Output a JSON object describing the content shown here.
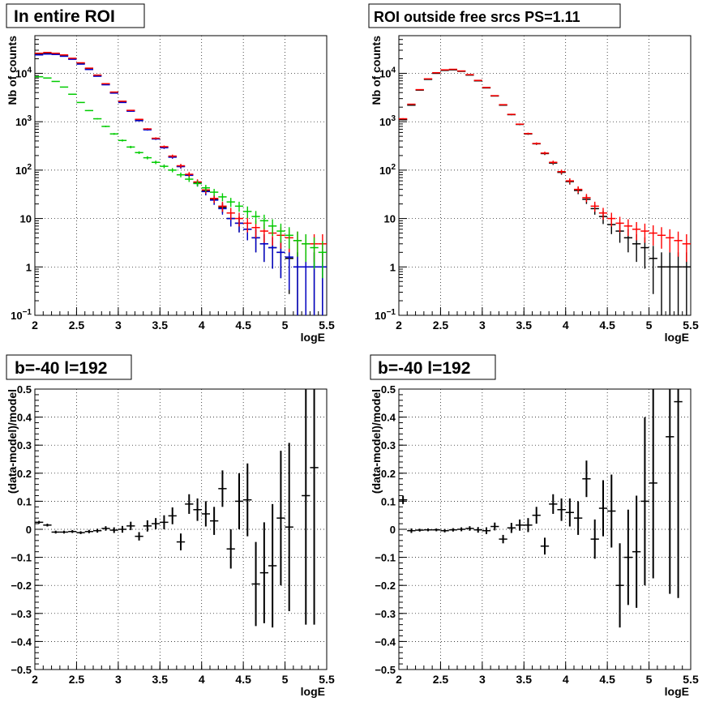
{
  "chart_data": [
    {
      "type": "scatter",
      "title": "In entire ROI",
      "xlabel": "logE",
      "ylabel": "Nb of counts",
      "xlim": [
        2,
        5.5
      ],
      "ylim": [
        0.1,
        60000
      ],
      "yscale": "log",
      "grid": true,
      "x_ticks": [
        "2",
        "2.5",
        "3",
        "3.5",
        "4",
        "4.5",
        "5",
        "5.5"
      ],
      "y_ticks": [
        {
          "v": 0.1,
          "base": "10",
          "exp": "−1"
        },
        {
          "v": 1,
          "label": "1"
        },
        {
          "v": 10,
          "label": "10"
        },
        {
          "v": 100,
          "base": "10",
          "exp": "2"
        },
        {
          "v": 1000,
          "base": "10",
          "exp": "3"
        },
        {
          "v": 10000,
          "base": "10",
          "exp": "4"
        }
      ],
      "bin_width": 0.1,
      "series": [
        {
          "color": "#000000",
          "x": [
            2.05,
            2.15,
            2.25,
            2.35,
            2.45,
            2.55,
            2.65,
            2.75,
            2.85,
            2.95,
            3.05,
            3.15,
            3.25,
            3.35,
            3.45,
            3.55,
            3.65,
            3.75,
            3.85,
            3.95,
            4.05,
            4.15,
            4.25,
            4.35,
            4.45,
            4.55,
            4.65,
            4.75,
            4.85,
            4.95,
            5.05,
            5.15,
            5.25,
            5.35,
            5.45
          ],
          "y": [
            25000,
            26000,
            25000,
            23000,
            20000,
            16000,
            12500,
            9000,
            6000,
            4000,
            2600,
            1700,
            1100,
            700,
            450,
            300,
            190,
            120,
            80,
            55,
            37,
            25,
            17,
            10,
            8,
            6,
            4,
            3,
            2.5,
            2,
            1.5,
            1,
            1,
            1,
            1
          ],
          "err": [
            0,
            0,
            0,
            0,
            0,
            0,
            0,
            0,
            0,
            0,
            0,
            0,
            0,
            0,
            0,
            0,
            0,
            0,
            0,
            0,
            0,
            0,
            0,
            0,
            0,
            0,
            0,
            0,
            0,
            0,
            0,
            0,
            0,
            0,
            0
          ]
        },
        {
          "color": "#0000cc",
          "x": [
            2.05,
            2.15,
            2.25,
            2.35,
            2.45,
            2.55,
            2.65,
            2.75,
            2.85,
            2.95,
            3.05,
            3.15,
            3.25,
            3.35,
            3.45,
            3.55,
            3.65,
            3.75,
            3.85,
            3.95,
            4.05,
            4.15,
            4.25,
            4.35,
            4.45,
            4.55,
            4.65,
            4.75,
            4.85,
            4.95,
            5.05,
            5.15,
            5.25,
            5.35,
            5.45
          ],
          "y": [
            24000,
            25000,
            24500,
            22500,
            19500,
            15500,
            12000,
            8700,
            5800,
            3900,
            2500,
            1650,
            1050,
            680,
            440,
            290,
            185,
            118,
            78,
            53,
            36,
            24,
            16,
            10,
            8,
            6,
            4,
            3,
            2.5,
            2,
            1.6,
            1,
            1,
            1,
            1
          ],
          "err": [
            0,
            0,
            0,
            0,
            0,
            0,
            0,
            0,
            0,
            0,
            0,
            0,
            0,
            0,
            0,
            0,
            0,
            0,
            0,
            0,
            0,
            0,
            0,
            0,
            0,
            0,
            0,
            0,
            0,
            0,
            0,
            0,
            0,
            0,
            0
          ]
        },
        {
          "color": "#ff0000",
          "x": [
            2.05,
            2.15,
            2.25,
            2.35,
            2.45,
            2.55,
            2.65,
            2.75,
            2.85,
            2.95,
            3.05,
            3.15,
            3.25,
            3.35,
            3.45,
            3.55,
            3.65,
            3.75,
            3.85,
            3.95,
            4.05,
            4.15,
            4.25,
            4.35,
            4.45,
            4.55,
            4.65,
            4.75,
            4.85,
            4.95,
            5.05,
            5.15,
            5.25,
            5.35,
            5.45
          ],
          "y": [
            26000,
            27000,
            26000,
            24000,
            20500,
            16500,
            12800,
            9200,
            6100,
            4100,
            2650,
            1720,
            1120,
            710,
            455,
            305,
            195,
            123,
            82,
            57,
            39,
            26,
            18,
            13,
            10,
            8,
            6.5,
            5.5,
            5,
            4.5,
            4,
            3.5,
            3,
            3,
            3
          ],
          "err": [
            0,
            0,
            0,
            0,
            0,
            0,
            0,
            0,
            0,
            0,
            0,
            0,
            0,
            0,
            0,
            0,
            0,
            0,
            0,
            0,
            0,
            0,
            0,
            0,
            0,
            0,
            0,
            0,
            0,
            0,
            0,
            0,
            0,
            0,
            0
          ]
        },
        {
          "color": "#00cc00",
          "x": [
            2.05,
            2.15,
            2.25,
            2.35,
            2.45,
            2.55,
            2.65,
            2.75,
            2.85,
            2.95,
            3.05,
            3.15,
            3.25,
            3.35,
            3.45,
            3.55,
            3.65,
            3.75,
            3.85,
            3.95,
            4.05,
            4.15,
            4.25,
            4.35,
            4.45,
            4.55,
            4.65,
            4.75,
            4.85,
            4.95,
            5.05,
            5.15,
            5.25,
            5.35,
            5.45
          ],
          "y": [
            8500,
            8000,
            6800,
            5200,
            3700,
            2500,
            1700,
            1150,
            800,
            560,
            410,
            300,
            230,
            180,
            145,
            120,
            100,
            80,
            65,
            53,
            43,
            35,
            28,
            22,
            18,
            14,
            11,
            9,
            7,
            5.5,
            4.5,
            3.5,
            3,
            2.5,
            2
          ],
          "err": [
            0,
            0,
            0,
            0,
            0,
            0,
            0,
            0,
            0,
            0,
            0,
            0,
            0,
            0,
            0,
            0,
            0,
            0,
            0,
            0,
            0,
            0,
            0,
            0,
            0,
            0,
            0,
            0,
            0,
            0,
            0,
            0,
            0,
            0,
            0
          ]
        }
      ]
    },
    {
      "type": "scatter",
      "title": "ROI outside free srcs PS=1.11",
      "xlabel": "logE",
      "ylabel": "Nb of counts",
      "xlim": [
        2,
        5.5
      ],
      "ylim": [
        0.1,
        60000
      ],
      "yscale": "log",
      "grid": true,
      "x_ticks": [
        "2",
        "2.5",
        "3",
        "3.5",
        "4",
        "4.5",
        "5",
        "5.5"
      ],
      "y_ticks": [
        {
          "v": 0.1,
          "base": "10",
          "exp": "−1"
        },
        {
          "v": 1,
          "label": "1"
        },
        {
          "v": 10,
          "label": "10"
        },
        {
          "v": 100,
          "base": "10",
          "exp": "2"
        },
        {
          "v": 1000,
          "base": "10",
          "exp": "3"
        },
        {
          "v": 10000,
          "base": "10",
          "exp": "4"
        }
      ],
      "bin_width": 0.1,
      "series": [
        {
          "color": "#000000",
          "x": [
            2.05,
            2.15,
            2.25,
            2.35,
            2.45,
            2.55,
            2.65,
            2.75,
            2.85,
            2.95,
            3.05,
            3.15,
            3.25,
            3.35,
            3.45,
            3.55,
            3.65,
            3.75,
            3.85,
            3.95,
            4.05,
            4.15,
            4.25,
            4.35,
            4.45,
            4.55,
            4.65,
            4.75,
            4.85,
            4.95,
            5.05,
            5.15,
            5.25,
            5.35,
            5.45
          ],
          "y": [
            1100,
            2200,
            4500,
            7500,
            10000,
            11500,
            11800,
            11000,
            9200,
            7000,
            5000,
            3400,
            2200,
            1400,
            880,
            560,
            350,
            220,
            140,
            90,
            58,
            38,
            25,
            16,
            11,
            7.5,
            5.5,
            4,
            3,
            2.5,
            1.5,
            1,
            1,
            1,
            1
          ],
          "err": [
            0,
            0,
            0,
            0,
            0,
            0,
            0,
            0,
            0,
            0,
            0,
            0,
            0,
            0,
            0,
            0,
            0,
            0,
            0,
            0,
            0,
            0,
            0,
            0,
            0,
            0,
            0,
            0,
            0,
            0,
            0,
            0,
            0,
            0,
            0
          ]
        },
        {
          "color": "#ff0000",
          "x": [
            2.05,
            2.15,
            2.25,
            2.35,
            2.45,
            2.55,
            2.65,
            2.75,
            2.85,
            2.95,
            3.05,
            3.15,
            3.25,
            3.35,
            3.45,
            3.55,
            3.65,
            3.75,
            3.85,
            3.95,
            4.05,
            4.15,
            4.25,
            4.35,
            4.45,
            4.55,
            4.65,
            4.75,
            4.85,
            4.95,
            5.05,
            5.15,
            5.25,
            5.35,
            5.45
          ],
          "y": [
            1150,
            2300,
            4600,
            7700,
            10300,
            11800,
            12100,
            11200,
            9400,
            7150,
            5100,
            3450,
            2250,
            1420,
            890,
            570,
            355,
            225,
            145,
            93,
            60,
            40,
            27,
            18,
            13,
            10,
            8,
            7,
            6,
            5.5,
            5,
            4.5,
            4,
            3.5,
            3
          ],
          "err": [
            0,
            0,
            0,
            0,
            0,
            0,
            0,
            0,
            0,
            0,
            0,
            0,
            0,
            0,
            0,
            0,
            0,
            0,
            0,
            0,
            0,
            0,
            0,
            0,
            0,
            0,
            0,
            0,
            0,
            0,
            0,
            0,
            0,
            0,
            0
          ]
        }
      ]
    },
    {
      "type": "scatter",
      "title": "b=-40 l=192",
      "xlabel": "logE",
      "ylabel": "(data-model)/model",
      "xlim": [
        2,
        5.5
      ],
      "ylim": [
        -0.5,
        0.5
      ],
      "yscale": "linear",
      "grid": true,
      "x_ticks": [
        "2",
        "2.5",
        "3",
        "3.5",
        "4",
        "4.5",
        "5",
        "5.5"
      ],
      "y_ticks": [
        {
          "v": -0.5,
          "label": "−0.5"
        },
        {
          "v": -0.4,
          "label": "−0.4"
        },
        {
          "v": -0.3,
          "label": "−0.3"
        },
        {
          "v": -0.2,
          "label": "−0.2"
        },
        {
          "v": -0.1,
          "label": "−0.1"
        },
        {
          "v": 0,
          "label": "0"
        },
        {
          "v": 0.1,
          "label": "0.1"
        },
        {
          "v": 0.2,
          "label": "0.2"
        },
        {
          "v": 0.3,
          "label": "0.3"
        },
        {
          "v": 0.4,
          "label": "0.4"
        },
        {
          "v": 0.5,
          "label": "0.5"
        }
      ],
      "bin_width": 0.1,
      "series": [
        {
          "color": "#000000",
          "x": [
            2.05,
            2.15,
            2.25,
            2.35,
            2.45,
            2.55,
            2.65,
            2.75,
            2.85,
            2.95,
            3.05,
            3.15,
            3.25,
            3.35,
            3.45,
            3.55,
            3.65,
            3.75,
            3.85,
            3.95,
            4.05,
            4.15,
            4.25,
            4.35,
            4.45,
            4.55,
            4.65,
            4.75,
            4.85,
            4.95,
            5.05,
            5.25,
            5.35
          ],
          "y": [
            0.025,
            0.015,
            -0.01,
            -0.01,
            -0.008,
            -0.012,
            -0.008,
            -0.005,
            0.003,
            -0.003,
            0,
            0.012,
            -0.025,
            0.012,
            0.02,
            0.025,
            0.048,
            -0.045,
            0.09,
            0.07,
            0.055,
            0.03,
            0.145,
            -0.07,
            0.1,
            0.105,
            -0.195,
            -0.155,
            -0.13,
            0.04,
            0.008,
            0.12,
            0.22
          ],
          "err": [
            0.005,
            0.005,
            0.005,
            0.005,
            0.005,
            0.005,
            0.006,
            0.007,
            0.008,
            0.01,
            0.012,
            0.015,
            0.015,
            0.02,
            0.02,
            0.025,
            0.03,
            0.03,
            0.035,
            0.04,
            0.045,
            0.05,
            0.065,
            0.07,
            0.1,
            0.13,
            0.15,
            0.18,
            0.22,
            0.24,
            0.3,
            0.46,
            0.56
          ]
        }
      ]
    },
    {
      "type": "scatter",
      "title": "b=-40 l=192",
      "xlabel": "logE",
      "ylabel": "(data-model)/model",
      "xlim": [
        2,
        5.5
      ],
      "ylim": [
        -0.5,
        0.5
      ],
      "yscale": "linear",
      "grid": true,
      "x_ticks": [
        "2",
        "2.5",
        "3",
        "3.5",
        "4",
        "4.5",
        "5",
        "5.5"
      ],
      "y_ticks": [
        {
          "v": -0.5,
          "label": "−0.5"
        },
        {
          "v": -0.4,
          "label": "−0.4"
        },
        {
          "v": -0.3,
          "label": "−0.3"
        },
        {
          "v": -0.2,
          "label": "−0.2"
        },
        {
          "v": -0.1,
          "label": "−0.1"
        },
        {
          "v": 0,
          "label": "0"
        },
        {
          "v": 0.1,
          "label": "0.1"
        },
        {
          "v": 0.2,
          "label": "0.2"
        },
        {
          "v": 0.3,
          "label": "0.3"
        },
        {
          "v": 0.4,
          "label": "0.4"
        },
        {
          "v": 0.5,
          "label": "0.5"
        }
      ],
      "bin_width": 0.1,
      "series": [
        {
          "color": "#000000",
          "x": [
            2.05,
            2.15,
            2.25,
            2.35,
            2.45,
            2.55,
            2.65,
            2.75,
            2.85,
            2.95,
            3.05,
            3.15,
            3.25,
            3.35,
            3.45,
            3.55,
            3.65,
            3.75,
            3.85,
            3.95,
            4.05,
            4.15,
            4.25,
            4.35,
            4.45,
            4.55,
            4.65,
            4.75,
            4.85,
            4.95,
            5.05,
            5.25,
            5.35
          ],
          "y": [
            0.105,
            -0.005,
            -0.003,
            -0.002,
            -0.002,
            -0.005,
            -0.002,
            0,
            0.003,
            -0.002,
            -0.005,
            0.01,
            -0.035,
            0.005,
            0.015,
            0.015,
            0.05,
            -0.06,
            0.09,
            0.07,
            0.06,
            0.04,
            0.18,
            -0.035,
            0.075,
            0.065,
            -0.2,
            -0.1,
            -0.08,
            0.1,
            0.165,
            0.33,
            0.455
          ],
          "err": [
            0.015,
            0.008,
            0.005,
            0.005,
            0.005,
            0.006,
            0.006,
            0.007,
            0.008,
            0.01,
            0.012,
            0.014,
            0.015,
            0.018,
            0.02,
            0.025,
            0.03,
            0.03,
            0.035,
            0.04,
            0.05,
            0.06,
            0.065,
            0.07,
            0.1,
            0.13,
            0.15,
            0.17,
            0.2,
            0.3,
            0.34,
            0.56,
            0.7
          ]
        }
      ]
    }
  ]
}
